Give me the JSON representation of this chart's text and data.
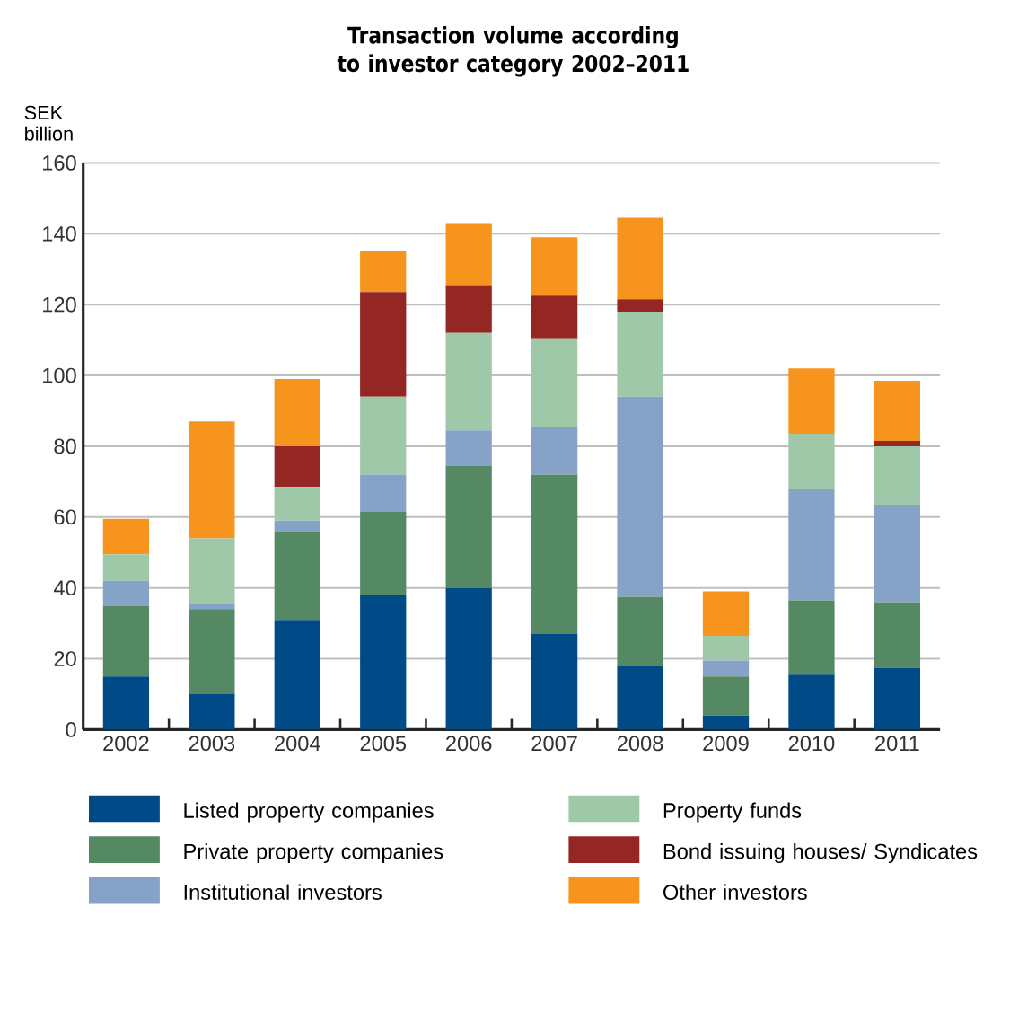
{
  "chart_data": {
    "type": "bar",
    "stacked": true,
    "title": "Transaction volume according to investor category 2002–2011",
    "ylabel": "SEK billion",
    "categories": [
      "2002",
      "2003",
      "2004",
      "2005",
      "2006",
      "2007",
      "2008",
      "2009",
      "2010",
      "2011"
    ],
    "series": [
      {
        "name": "Listed property companies",
        "color": "#004b87",
        "values": [
          15,
          10,
          31,
          38,
          40,
          27,
          18,
          4,
          15.5,
          17.5
        ]
      },
      {
        "name": "Private property companies",
        "color": "#548964",
        "values": [
          20,
          24,
          25,
          23.5,
          34.5,
          45,
          19.5,
          11,
          21,
          18.5
        ]
      },
      {
        "name": "Institutional investors",
        "color": "#87a2c7",
        "values": [
          7,
          1.5,
          3,
          10.5,
          10,
          13.5,
          56.5,
          4.5,
          31.5,
          27.5
        ]
      },
      {
        "name": "Property funds",
        "color": "#9ec8a8",
        "values": [
          7.5,
          18.5,
          9.5,
          22,
          27.5,
          25,
          24,
          7,
          15.5,
          16.5
        ]
      },
      {
        "name": "Bond issuing houses/ Syndicates",
        "color": "#942623",
        "values": [
          0,
          0,
          11.5,
          29.5,
          13.5,
          12,
          3.5,
          0,
          0,
          1.5
        ]
      },
      {
        "name": "Other investors",
        "color": "#f7941d",
        "values": [
          10,
          33,
          19,
          11.5,
          17.5,
          16.5,
          23,
          12.5,
          18.5,
          17
        ]
      }
    ],
    "ylim": [
      0,
      160
    ],
    "yticks": [
      0,
      20,
      40,
      60,
      80,
      100,
      120,
      140,
      160
    ],
    "grid": "y",
    "legend": "bottom"
  }
}
